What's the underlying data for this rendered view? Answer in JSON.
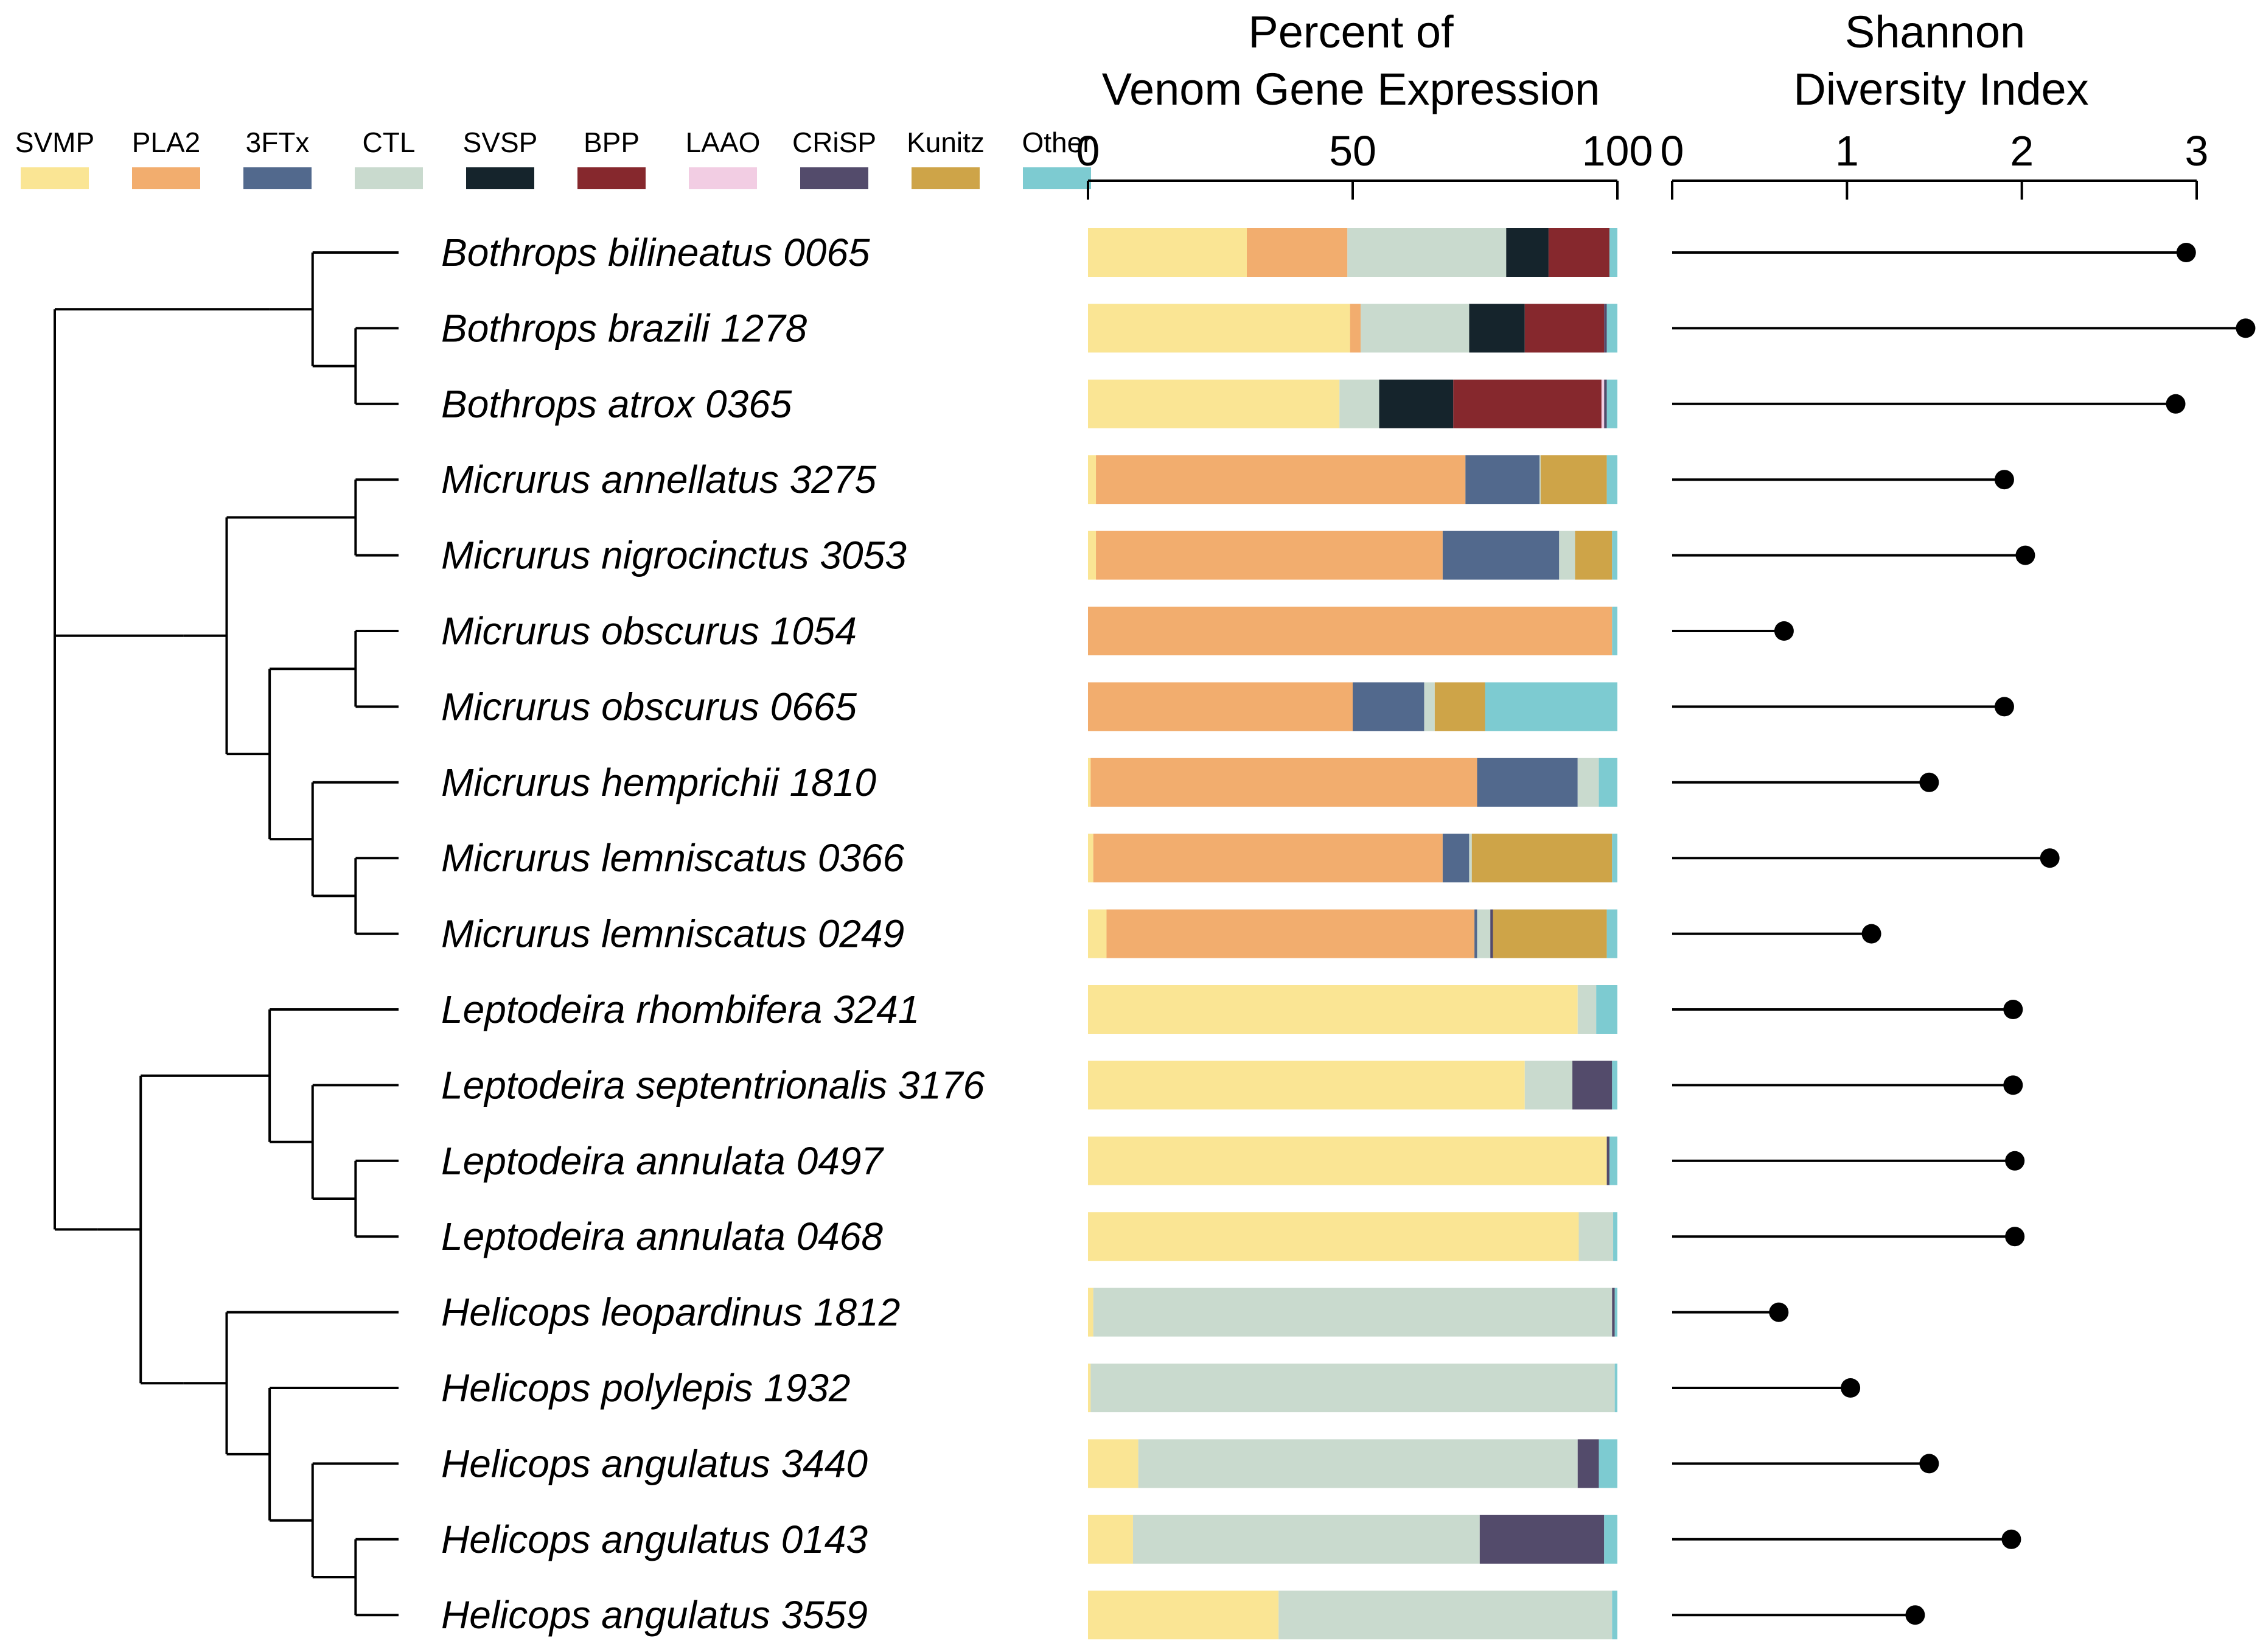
{
  "chart_data": {
    "type": "bar",
    "subtype": "stacked-horizontal-bar-with-lollipop",
    "legend": [
      {
        "name": "SVMP",
        "color": "#fae594"
      },
      {
        "name": "PLA2",
        "color": "#f2ad6e"
      },
      {
        "name": "3FTx",
        "color": "#52698d"
      },
      {
        "name": "CTL",
        "color": "#c9dace"
      },
      {
        "name": "SVSP",
        "color": "#15242c"
      },
      {
        "name": "BPP",
        "color": "#86282d"
      },
      {
        "name": "LAAO",
        "color": "#f2cde3"
      },
      {
        "name": "CRiSP",
        "color": "#534b6b"
      },
      {
        "name": "Kunitz",
        "color": "#cea448"
      },
      {
        "name": "Other",
        "color": "#7dcbd1"
      }
    ],
    "panels": [
      {
        "id": "composition",
        "title_line1": "Percent of",
        "title_line2": "Venom Gene Expression",
        "xlim": [
          0,
          100
        ],
        "ticks": [
          "0",
          "50",
          "100"
        ]
      },
      {
        "id": "diversity",
        "title_line1": "Shannon",
        "title_line2": "Diversity Index",
        "xlim": [
          0,
          3
        ],
        "ticks": [
          "0",
          "1",
          "2",
          "3"
        ]
      }
    ],
    "samples": [
      {
        "label": "Bothrops bilineatus 0065",
        "shannon": 2.94,
        "composition": [
          30,
          19,
          0,
          30,
          8,
          11.5,
          0,
          0,
          0,
          1.5
        ]
      },
      {
        "label": "Bothrops brazili 1278",
        "shannon": 3.28,
        "composition": [
          49.5,
          2,
          0,
          20.5,
          10.5,
          15,
          0,
          0.5,
          0,
          2
        ]
      },
      {
        "label": "Bothrops atrox 0365",
        "shannon": 2.88,
        "composition": [
          47.5,
          0,
          0,
          7.5,
          14,
          28,
          0.5,
          0.5,
          0,
          2
        ]
      },
      {
        "label": "Micrurus annellatus 3275",
        "shannon": 1.9,
        "composition": [
          1.5,
          69.8,
          14,
          0.2,
          0,
          0,
          0,
          0,
          12.5,
          2
        ]
      },
      {
        "label": "Micrurus nigrocinctus 3053",
        "shannon": 2.02,
        "composition": [
          1.5,
          65.5,
          22,
          3,
          0,
          0,
          0,
          0,
          7,
          1
        ]
      },
      {
        "label": "Micrurus obscurus 1054",
        "shannon": 0.64,
        "composition": [
          0,
          99,
          0,
          0,
          0,
          0,
          0,
          0,
          0,
          1
        ]
      },
      {
        "label": "Micrurus obscurus 0665",
        "shannon": 1.9,
        "composition": [
          0,
          50,
          13.5,
          2,
          0,
          0,
          0,
          0,
          9.5,
          25
        ]
      },
      {
        "label": "Micrurus hemprichii 1810",
        "shannon": 1.47,
        "composition": [
          0.5,
          73,
          19,
          4,
          0,
          0,
          0,
          0,
          0,
          3.5
        ]
      },
      {
        "label": "Micrurus lemniscatus 0366",
        "shannon": 2.16,
        "composition": [
          1,
          66,
          5,
          0.5,
          0,
          0,
          0,
          0,
          26.5,
          1
        ]
      },
      {
        "label": "Micrurus lemniscatus 0249",
        "shannon": 1.14,
        "composition": [
          3.5,
          69.5,
          0.5,
          2.5,
          0,
          0,
          0,
          0.5,
          21.5,
          2
        ]
      },
      {
        "label": "Leptodeira rhombifera 3241",
        "shannon": 1.95,
        "composition": [
          92.5,
          0,
          0,
          3.5,
          0,
          0,
          0,
          0,
          0,
          4
        ]
      },
      {
        "label": "Leptodeira septentrionalis 3176",
        "shannon": 1.95,
        "composition": [
          82.5,
          0,
          0,
          9,
          0,
          0,
          0,
          7.5,
          0,
          1
        ]
      },
      {
        "label": "Leptodeira annulata 0497",
        "shannon": 1.96,
        "composition": [
          98,
          0,
          0,
          0,
          0,
          0,
          0,
          0.5,
          0,
          1.5
        ]
      },
      {
        "label": "Leptodeira annulata 0468",
        "shannon": 1.96,
        "composition": [
          92.7,
          0,
          0,
          6.5,
          0,
          0,
          0,
          0,
          0,
          0.8
        ]
      },
      {
        "label": "Helicops leopardinus 1812",
        "shannon": 0.61,
        "composition": [
          1,
          0,
          0,
          98,
          0,
          0,
          0,
          0.5,
          0,
          0.5
        ]
      },
      {
        "label": "Helicops polylepis 1932",
        "shannon": 1.02,
        "composition": [
          0.5,
          0,
          0,
          99,
          0,
          0,
          0,
          0,
          0,
          0.5
        ]
      },
      {
        "label": "Helicops angulatus 3440",
        "shannon": 1.47,
        "composition": [
          9.5,
          0,
          0,
          83,
          0,
          0,
          0,
          4,
          0,
          3.5
        ]
      },
      {
        "label": "Helicops angulatus 0143",
        "shannon": 1.94,
        "composition": [
          8.5,
          0,
          0,
          65.5,
          0,
          0,
          0,
          23.5,
          0,
          2.5
        ]
      },
      {
        "label": "Helicops angulatus 3559",
        "shannon": 1.39,
        "composition": [
          36,
          0,
          0,
          63,
          0,
          0,
          0,
          0,
          0,
          1
        ]
      }
    ],
    "tree": {
      "c": [
        {
          "c": [
            {
              "c": [
                {
                  "l": 0
                },
                {
                  "c": [
                    {
                      "l": 1
                    },
                    {
                      "l": 2
                    }
                  ]
                }
              ]
            }
          ]
        },
        {
          "c": [
            {
              "c": [
                {
                  "c": [
                    {
                      "l": 3
                    },
                    {
                      "l": 4
                    }
                  ]
                },
                {
                  "c": [
                    {
                      "c": [
                        {
                          "l": 5
                        },
                        {
                          "l": 6
                        }
                      ]
                    },
                    {
                      "c": [
                        {
                          "l": 7
                        },
                        {
                          "c": [
                            {
                              "l": 8
                            },
                            {
                              "l": 9
                            }
                          ]
                        }
                      ]
                    }
                  ]
                }
              ]
            }
          ]
        },
        {
          "c": [
            {
              "c": [
                {
                  "c": [
                    {
                      "c": [
                        {
                          "l": 10
                        },
                        {
                          "c": [
                            {
                              "l": 11
                            },
                            {
                              "c": [
                                {
                                  "l": 12
                                },
                                {
                                  "l": 13
                                }
                              ]
                            }
                          ]
                        }
                      ]
                    }
                  ]
                },
                {
                  "c": [
                    {
                      "c": [
                        {
                          "l": 14
                        },
                        {
                          "c": [
                            {
                              "l": 15
                            },
                            {
                              "c": [
                                {
                                  "l": 16
                                },
                                {
                                  "c": [
                                    {
                                      "l": 17
                                    },
                                    {
                                      "l": 18
                                    }
                                  ]
                                }
                              ]
                            }
                          ]
                        }
                      ]
                    }
                  ]
                }
              ]
            }
          ]
        }
      ]
    }
  }
}
